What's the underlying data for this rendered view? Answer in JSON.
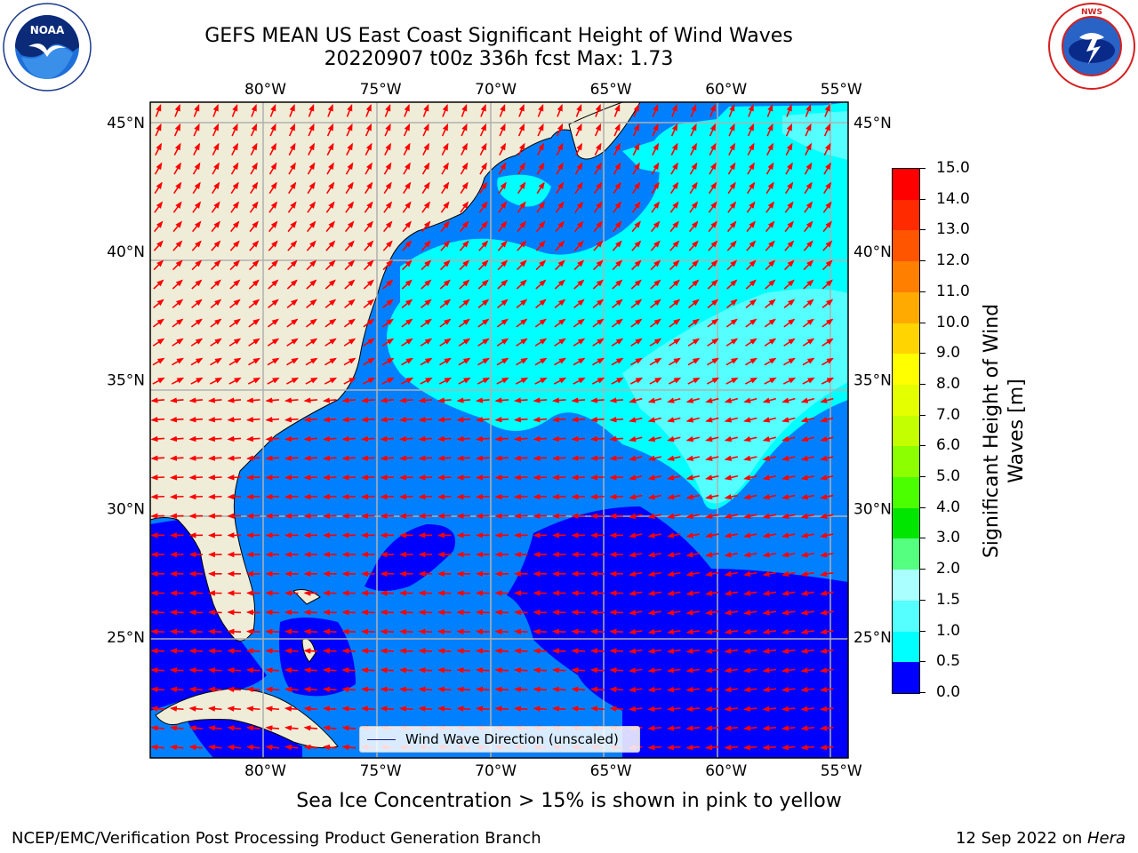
{
  "title_line1": "GEFS MEAN US East Coast Significant Height of Wind Waves",
  "title_line2": "20220907 t00z 336h fcst   Max: 1.73",
  "logos": {
    "left": "noaa-logo",
    "right": "nws-logo",
    "left_text": "NOAA",
    "right_text": "NATIONAL WEATHER SERVICE"
  },
  "map": {
    "lon_labels": [
      "80°W",
      "75°W",
      "70°W",
      "65°W",
      "60°W",
      "55°W"
    ],
    "lat_labels": [
      "45°N",
      "40°N",
      "35°N",
      "30°N",
      "25°N"
    ],
    "lon_values": [
      -80,
      -75,
      -70,
      -65,
      -60,
      -55
    ],
    "lat_values": [
      45,
      40,
      35,
      30,
      25
    ],
    "extent": {
      "lon": [
        -85,
        -54.7
      ],
      "lat": [
        20.3,
        45.8
      ]
    },
    "legend_label": "Wind Wave Direction (unscaled)",
    "arrow_color": "#ff0000",
    "land_color": "#efedd8"
  },
  "colorbar": {
    "label": "Significant Height of Wind Waves [m]",
    "ticks": [
      "15.0",
      "14.0",
      "13.0",
      "12.0",
      "11.0",
      "10.0",
      "9.0",
      "8.0",
      "7.0",
      "6.0",
      "5.0",
      "4.0",
      "3.0",
      "2.0",
      "1.5",
      "1.0",
      "0.5",
      "0.0"
    ],
    "colors": [
      "#ff0000",
      "#ff2a00",
      "#ff5500",
      "#ff7f00",
      "#ffaa00",
      "#ffd400",
      "#ffff00",
      "#e4ff00",
      "#c4ff00",
      "#8cff00",
      "#4cff00",
      "#00e600",
      "#55ff7f",
      "#aaffff",
      "#55ffff",
      "#00ffff",
      "#0080ff",
      "#0000ff"
    ]
  },
  "note": "Sea Ice Concentration > 15% is shown in pink to yellow",
  "footer_left": "NCEP/EMC/Verification Post Processing Product Generation Branch",
  "footer_right_date": "12 Sep 2022 on ",
  "footer_right_host": "Hera"
}
